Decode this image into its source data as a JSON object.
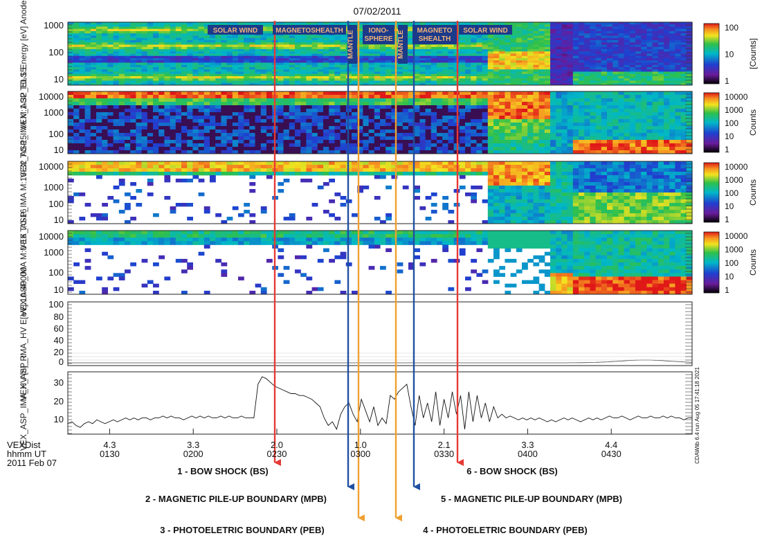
{
  "chart_data": {
    "type": "heatmap",
    "title": "07/02/2011",
    "panels": [
      {
        "ylabel": "VEX_ASP_ELS Energy [eV] Anodes:0-15",
        "ytick_labels": [
          "1000",
          "100",
          "10"
        ],
        "colorbar_ticks": [
          "100",
          "10",
          "1"
        ],
        "colorbar_label": "[Counts]"
      },
      {
        "ylabel": "VEX_ASP_IMA M:1-32 T:0-15",
        "ytick_labels": [
          "10000",
          "1000",
          "100",
          "10"
        ],
        "colorbar_ticks": [
          "10000",
          "1000",
          "100",
          "10",
          "1"
        ],
        "colorbar_label": "Counts"
      },
      {
        "ylabel": "VEX_ASP_IMA M:16-32 T:0-15",
        "ytick_labels": [
          "10000",
          "1000",
          "100",
          "10"
        ],
        "colorbar_ticks": [
          "10000",
          "1000",
          "100",
          "10",
          "1"
        ],
        "colorbar_label": "Counts"
      },
      {
        "ylabel": "VEX ASP_IMA M:0-16 T:0-16",
        "ytick_labels": [
          "10000",
          "1000",
          "100",
          "10"
        ],
        "colorbar_ticks": [
          "10000",
          "1000",
          "100",
          "10",
          "1"
        ],
        "colorbar_label": "Counts"
      },
      {
        "ylabel": "VEX_ASP_IMA_HV E[eV]:10-40000",
        "ytick_labels": [
          "100",
          "80",
          "60",
          "40",
          "20",
          "0"
        ]
      },
      {
        "ylabel": "VEX_ASP_IMA_HV [n]_R",
        "ytick_labels": [
          "30",
          "20",
          "10"
        ],
        "y": [
          9,
          10,
          8,
          7,
          9,
          10,
          9,
          11,
          10,
          9,
          10,
          11,
          10,
          11,
          12,
          11,
          12,
          11,
          12,
          12,
          11,
          12,
          12,
          13,
          12,
          13,
          12,
          12,
          11,
          12,
          13,
          12,
          13,
          12,
          13,
          12,
          12,
          13,
          12,
          13,
          12,
          12,
          13,
          12,
          12,
          12,
          30,
          34,
          33,
          31,
          29,
          28,
          27,
          26,
          25,
          25,
          24,
          24,
          23,
          22,
          20,
          18,
          12,
          8,
          10,
          6,
          14,
          18,
          20,
          14,
          10,
          22,
          16,
          10,
          18,
          8,
          12,
          9,
          24,
          22,
          26,
          28,
          30,
          18,
          8,
          24,
          12,
          20,
          10,
          26,
          8,
          22,
          12,
          26,
          14,
          24,
          6,
          26,
          10,
          24,
          12,
          20,
          10,
          18,
          12,
          14,
          12,
          13,
          12,
          11,
          12,
          11,
          12,
          11,
          12,
          11,
          10,
          11,
          10,
          11,
          12,
          11,
          12,
          11,
          10,
          11,
          12,
          11,
          12,
          11,
          12,
          13,
          12,
          12,
          13,
          12,
          11,
          12,
          13,
          12,
          12,
          13,
          12,
          12,
          13,
          12,
          13,
          12,
          12,
          11,
          12,
          12
        ]
      }
    ],
    "x_axis": {
      "row_labels": [
        "VEXDist",
        "hhmm UT",
        "2011 Feb 07"
      ],
      "dist": [
        "4.3",
        "3.3",
        "2.0",
        "1.0",
        "2.1",
        "3.3",
        "4.4"
      ],
      "time": [
        "0130",
        "0200",
        "0230",
        "0300",
        "0330",
        "0400",
        "0430"
      ]
    },
    "regions": [
      "SOLAR WIND",
      "MAGNETOSHEALTH",
      "MANTLE",
      "IONO-SPHERE",
      "MANTLE",
      "MAGNETO SHEALTH",
      "SOLAR WIND"
    ],
    "boundaries": [
      {
        "label": "1 - BOW SHOCK (BS)",
        "time": "0225",
        "color": "#e53935"
      },
      {
        "label": "2 - MAGNETIC PILE-UP BOUNDARY (MPB)",
        "time": "0249",
        "color": "#1e4fa3"
      },
      {
        "label": "3 - PHOTOELETRIC BOUNDARY (PEB)",
        "time": "0253",
        "color": "#f0a030"
      },
      {
        "label": "4 - PHOTOELETRIC BOUNDARY (PEB)",
        "time": "0306",
        "color": "#f0a030"
      },
      {
        "label": "5 - MAGNETIC PILE-UP BOUNDARY (MPB)",
        "time": "0311",
        "color": "#1e4fa3"
      },
      {
        "label": "6 - BOW SHOCK (BS)",
        "time": "0330",
        "color": "#e53935"
      }
    ],
    "side_note": "CDAWlib 6.4 run Aug 05 17:41:18 2021"
  }
}
